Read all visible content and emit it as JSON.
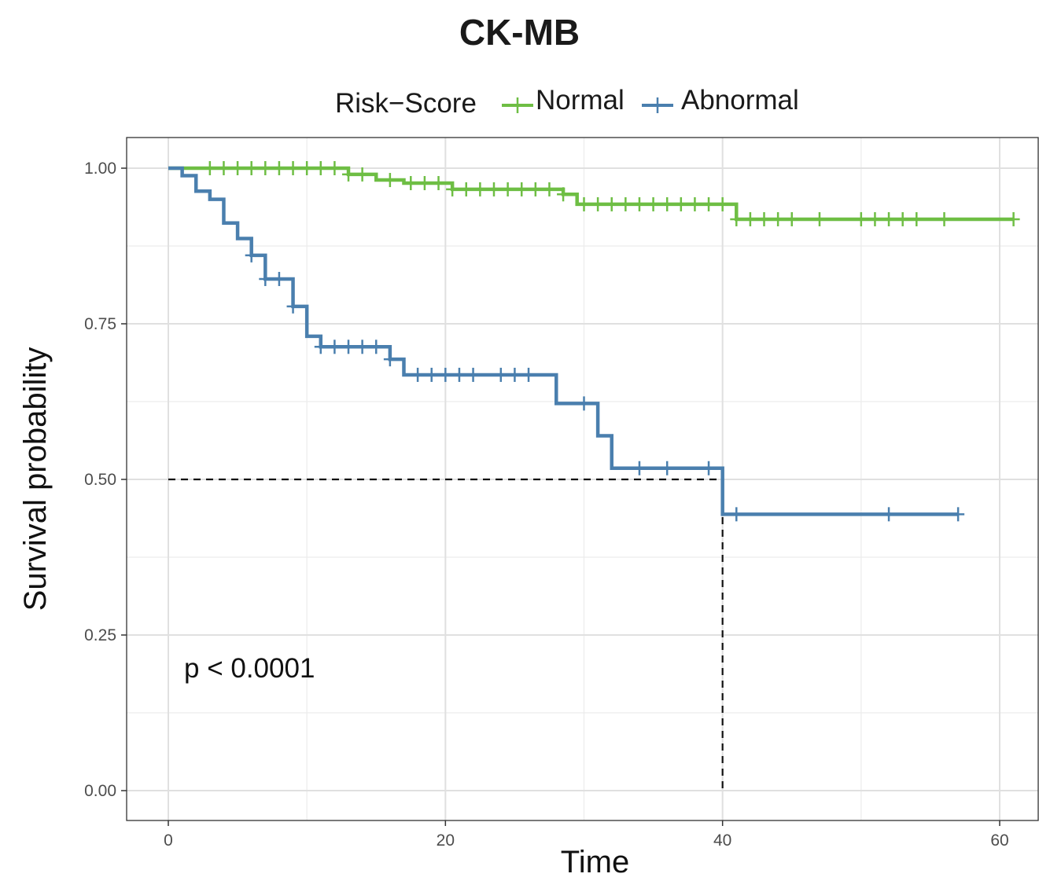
{
  "chart_data": {
    "type": "line",
    "title": "CK-MB",
    "xlabel": "Time",
    "ylabel": "Survival probability",
    "xlim": [
      -3,
      62
    ],
    "ylim": [
      -0.05,
      1.05
    ],
    "x_ticks": [
      0,
      20,
      40,
      60
    ],
    "y_ticks": [
      0,
      0.25,
      0.5,
      0.75,
      1.0
    ],
    "x_tick_labels": [
      "0",
      "20",
      "40",
      "60"
    ],
    "y_tick_labels": [
      "0.00",
      "0.25",
      "0.50",
      "0.75",
      "1.00"
    ],
    "grid": true,
    "legend": {
      "title": "Risk−Score",
      "placement": "top",
      "entries": [
        "Normal",
        "Abnormal"
      ]
    },
    "annotation": "p < 0.0001",
    "median_line": {
      "x": 40,
      "y": 0.5
    },
    "series": [
      {
        "name": "Normal",
        "color": "#6ebe44",
        "steps": [
          [
            0,
            1.0
          ],
          [
            13,
            0.99
          ],
          [
            15,
            0.981
          ],
          [
            17,
            0.976
          ],
          [
            20.5,
            0.966
          ],
          [
            28.5,
            0.958
          ],
          [
            29.5,
            0.942
          ],
          [
            41,
            0.918
          ],
          [
            61,
            0.918
          ]
        ],
        "censor": [
          3,
          4,
          5,
          6,
          7,
          8,
          9,
          10,
          11,
          12,
          13,
          14,
          16,
          17.5,
          18.5,
          19.5,
          20.5,
          21.5,
          22.5,
          23.5,
          24.5,
          25.5,
          26.5,
          27.5,
          28.5,
          30,
          31,
          32,
          33,
          34,
          35,
          36,
          37,
          38,
          39,
          40,
          41,
          42,
          43,
          44,
          45,
          47,
          50,
          51,
          52,
          53,
          54,
          56,
          61
        ]
      },
      {
        "name": "Abnormal",
        "color": "#4a7fae",
        "steps": [
          [
            0,
            1.0
          ],
          [
            1,
            0.988
          ],
          [
            2,
            0.963
          ],
          [
            3,
            0.95
          ],
          [
            4,
            0.912
          ],
          [
            5,
            0.887
          ],
          [
            6,
            0.86
          ],
          [
            7,
            0.822
          ],
          [
            9,
            0.778
          ],
          [
            10,
            0.73
          ],
          [
            11,
            0.713
          ],
          [
            16,
            0.693
          ],
          [
            17,
            0.668
          ],
          [
            28,
            0.622
          ],
          [
            31,
            0.57
          ],
          [
            32,
            0.518
          ],
          [
            40,
            0.444
          ],
          [
            57,
            0.444
          ]
        ],
        "censor": [
          6,
          7,
          8,
          9,
          11,
          12,
          13,
          14,
          15,
          16,
          18,
          19,
          20,
          21,
          22,
          24,
          25,
          26,
          30,
          34,
          36,
          39,
          41,
          52,
          57
        ]
      }
    ]
  }
}
